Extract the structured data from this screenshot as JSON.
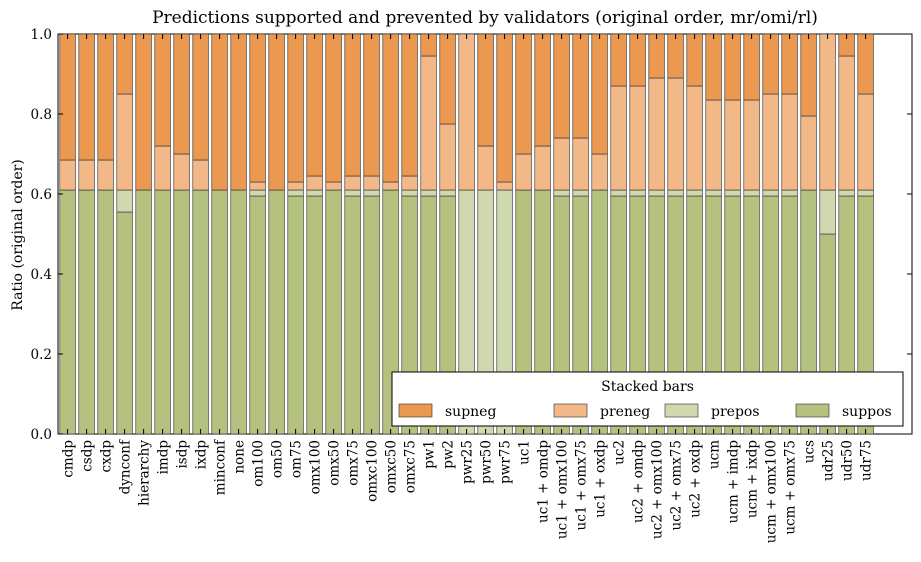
{
  "chart_data": {
    "type": "bar",
    "stacked": true,
    "title": "Predictions supported and prevented by validators (original order, mr/omi/rl)",
    "xlabel": "",
    "ylabel": "Ratio (original order)",
    "ylim": [
      0,
      1.0
    ],
    "yticks": [
      "0.0",
      "0.2",
      "0.4",
      "0.6",
      "0.8",
      "1.0"
    ],
    "grid": false,
    "legend": {
      "title": "Stacked bars",
      "placement": "bottom-right",
      "order": [
        "supneg",
        "preneg",
        "prepos",
        "suppos"
      ]
    },
    "categories": [
      "cmdp",
      "csdp",
      "cxdp",
      "dynconf",
      "hierarchy",
      "imdp",
      "isdp",
      "ixdp",
      "minconf",
      "none",
      "om100",
      "om50",
      "om75",
      "omx100",
      "omx50",
      "omx75",
      "omxc100",
      "omxc50",
      "omxc75",
      "pw1",
      "pw2",
      "pwr25",
      "pwr50",
      "pwr75",
      "uc1",
      "uc1 + omdp",
      "uc1 + omx100",
      "uc1 + omx75",
      "uc1 + oxdp",
      "uc2",
      "uc2 + omdp",
      "uc2 + omx100",
      "uc2 + omx75",
      "uc2 + oxdp",
      "ucm",
      "ucm + imdp",
      "ucm + ixdp",
      "ucm + omx100",
      "ucm + omx75",
      "ucs",
      "udr25",
      "udr50",
      "udr75"
    ],
    "series": [
      {
        "name": "suppos",
        "color": "#b5c27f",
        "values": [
          0.61,
          0.61,
          0.61,
          0.555,
          0.61,
          0.61,
          0.61,
          0.61,
          0.61,
          0.61,
          0.595,
          0.61,
          0.595,
          0.595,
          0.61,
          0.595,
          0.595,
          0.61,
          0.595,
          0.595,
          0.595,
          0.0,
          0.0,
          0.0,
          0.61,
          0.61,
          0.595,
          0.595,
          0.61,
          0.595,
          0.595,
          0.595,
          0.595,
          0.595,
          0.595,
          0.595,
          0.595,
          0.595,
          0.595,
          0.61,
          0.5,
          0.595,
          0.595
        ]
      },
      {
        "name": "prepos",
        "color": "#cfd8ae",
        "values": [
          0,
          0,
          0,
          0.055,
          0,
          0,
          0,
          0,
          0,
          0,
          0.015,
          0,
          0.015,
          0.015,
          0,
          0.015,
          0.015,
          0,
          0.015,
          0.015,
          0.015,
          0.61,
          0.61,
          0.61,
          0,
          0,
          0.015,
          0.015,
          0,
          0.015,
          0.015,
          0.015,
          0.015,
          0.015,
          0.015,
          0.015,
          0.015,
          0.015,
          0.015,
          0,
          0.11,
          0.015,
          0.015
        ]
      },
      {
        "name": "preneg",
        "color": "#f2b887",
        "values": [
          0.075,
          0.075,
          0.075,
          0.24,
          0,
          0.11,
          0.09,
          0.075,
          0,
          0,
          0.02,
          0,
          0.02,
          0.035,
          0.02,
          0.035,
          0.035,
          0.02,
          0.035,
          0.335,
          0.165,
          0.39,
          0.11,
          0.02,
          0.09,
          0.11,
          0.13,
          0.13,
          0.09,
          0.26,
          0.26,
          0.28,
          0.28,
          0.26,
          0.225,
          0.225,
          0.225,
          0.24,
          0.24,
          0.185,
          0.39,
          0.335,
          0.24
        ]
      },
      {
        "name": "supneg",
        "color": "#eb9851",
        "values": [
          0.315,
          0.315,
          0.315,
          0.15,
          0.39,
          0.28,
          0.3,
          0.315,
          0.39,
          0.39,
          0.37,
          0.39,
          0.37,
          0.355,
          0.37,
          0.355,
          0.355,
          0.37,
          0.355,
          0.055,
          0.225,
          0.0,
          0.28,
          0.37,
          0.3,
          0.28,
          0.26,
          0.26,
          0.3,
          0.13,
          0.13,
          0.11,
          0.11,
          0.13,
          0.165,
          0.165,
          0.165,
          0.15,
          0.15,
          0.205,
          0.0,
          0.055,
          0.15
        ]
      }
    ]
  }
}
